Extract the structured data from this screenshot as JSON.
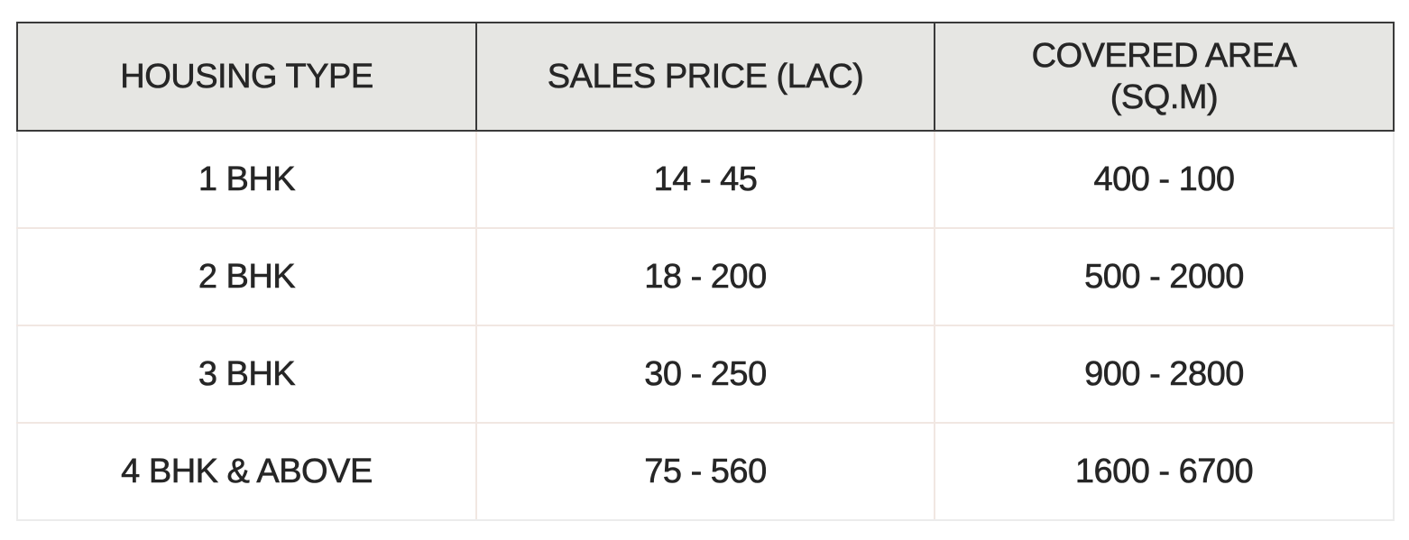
{
  "table": {
    "headers": [
      "HOUSING TYPE",
      "SALES PRICE (LAC)",
      "COVERED AREA (SQ.M)"
    ],
    "header_lines": {
      "covered_area_line1": "COVERED AREA",
      "covered_area_line2": "(SQ.M)"
    },
    "rows": [
      [
        "1 BHK",
        "14 - 45",
        "400 - 100"
      ],
      [
        "2 BHK",
        "18 - 200",
        "500 - 2000"
      ],
      [
        "3 BHK",
        "30 - 250",
        "900 - 2800"
      ],
      [
        "4 BHK & ABOVE",
        "75 - 560",
        "1600 - 6700"
      ]
    ]
  },
  "colors": {
    "header_background": "#e6e6e3",
    "header_border": "#3a3a3a",
    "cell_border": "#f1e7e2",
    "text": "#262626"
  }
}
